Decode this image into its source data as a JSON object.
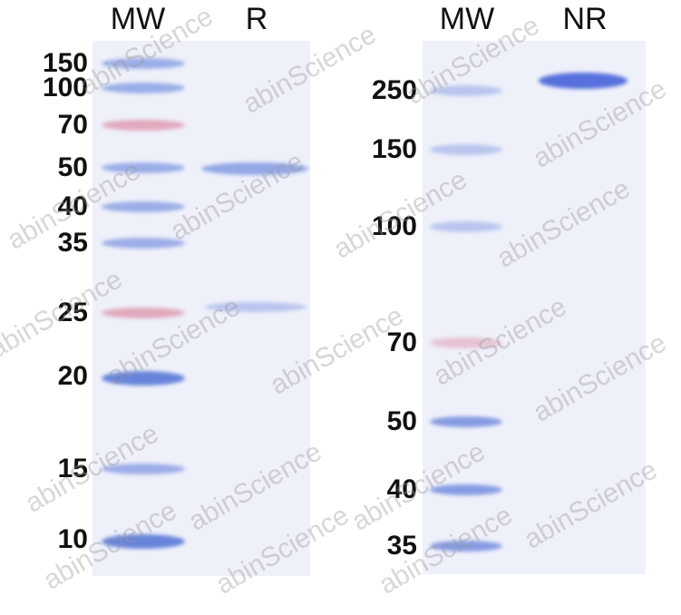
{
  "left_gel": {
    "headers": [
      "MW",
      "R"
    ],
    "markers": [
      "150",
      "100",
      "70",
      "50",
      "40",
      "35",
      "25",
      "20",
      "15",
      "10"
    ]
  },
  "right_gel": {
    "headers": [
      "MW",
      "NR"
    ],
    "markers": [
      "250",
      "150",
      "100",
      "70",
      "50",
      "40",
      "35"
    ]
  },
  "watermark": "abinScience",
  "colors": {
    "band_blue": "#5a78d8",
    "marker_pink": "#d8708c",
    "gel_bg": "#eef0fa"
  }
}
